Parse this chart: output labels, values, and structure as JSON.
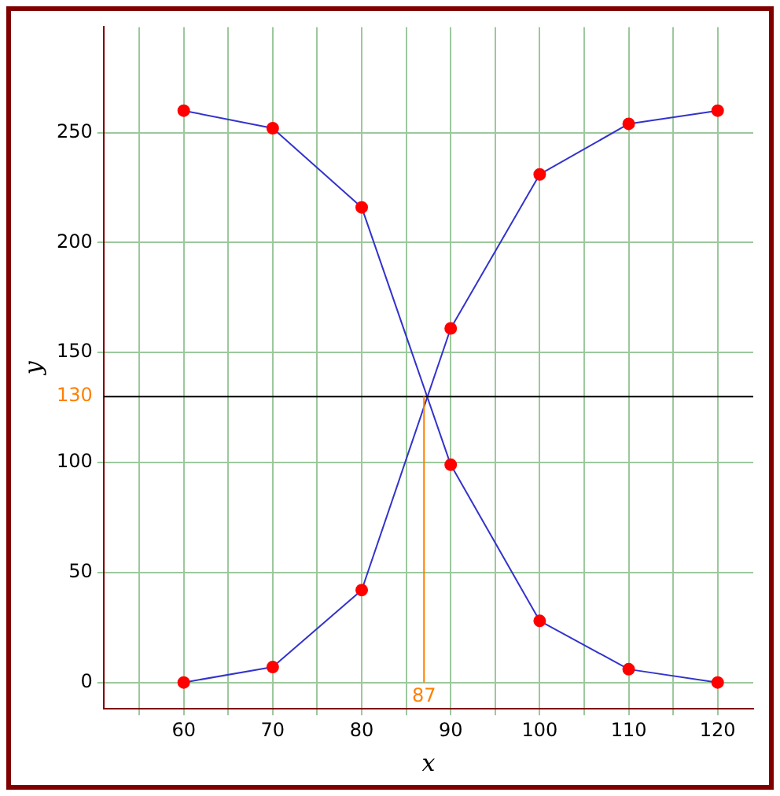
{
  "chart_data": {
    "type": "line",
    "xlabel": "x",
    "ylabel": "y",
    "x": [
      60,
      70,
      80,
      90,
      100,
      110,
      120
    ],
    "series": [
      {
        "color": "#3333cc",
        "colors": [
          "#ff0000",
          "#ff0000",
          "#ff0000",
          "#ff0000",
          "#ff0000",
          "#ff0000",
          "#ff0000"
        ],
        "values": [
          260,
          252,
          216,
          99,
          28,
          6,
          0
        ]
      },
      {
        "color": "#3333cc",
        "colors": [
          "#ff0000",
          "#ff0000",
          "#ff0000",
          "#ff0000",
          "#ff0000",
          "#ff0000",
          "#ff0000"
        ],
        "values": [
          0,
          7,
          42,
          161,
          231,
          254,
          260
        ]
      }
    ],
    "xlim": [
      51,
      124
    ],
    "ylim": [
      -12,
      298
    ],
    "xticks": [
      {
        "value": 55,
        "label": null
      },
      60,
      {
        "value": 65,
        "label": null
      },
      70,
      {
        "value": 75,
        "label": null
      },
      80,
      {
        "value": 85,
        "label": null
      },
      90,
      {
        "value": 95,
        "label": null
      },
      100,
      {
        "value": 105,
        "label": null
      },
      110,
      {
        "value": 115,
        "label": null
      },
      120
    ],
    "yticks": [
      0,
      50,
      100,
      150,
      200,
      250
    ],
    "ref_lines": [
      {
        "axis": "y",
        "value": 130,
        "label": "130",
        "color": "#000000"
      },
      {
        "axis": "x",
        "value": 87,
        "label": "87",
        "color": "#ff8000"
      }
    ],
    "grid": true,
    "marker": "circle",
    "line_style": "solid",
    "legend": false
  }
}
